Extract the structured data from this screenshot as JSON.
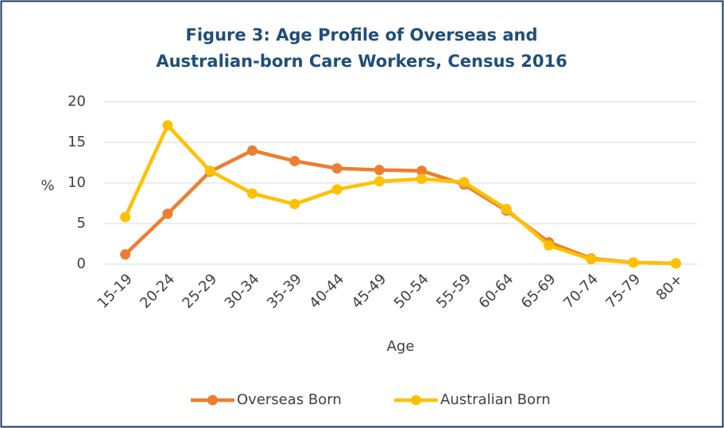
{
  "chart_data": {
    "type": "line",
    "title": "Figure 3: Age Profile of Overseas and Australian-born Care Workers, Census 2016",
    "x_label": "Age",
    "y_label": "%",
    "categories": [
      "15-19",
      "20-24",
      "25-29",
      "30-34",
      "35-39",
      "40-44",
      "45-49",
      "50-54",
      "55-59",
      "60-64",
      "65-69",
      "70-74",
      "75-79",
      "80+"
    ],
    "series": [
      {
        "name": "Overseas Born",
        "color": "#ed7d31",
        "values": [
          1.2,
          6.2,
          11.4,
          14.0,
          12.7,
          11.8,
          11.6,
          11.5,
          9.8,
          6.6,
          2.7,
          0.7,
          0.2,
          0.1
        ]
      },
      {
        "name": "Australian Born",
        "color": "#ffc000",
        "values": [
          5.8,
          17.1,
          11.5,
          8.7,
          7.4,
          9.2,
          10.2,
          10.5,
          10.1,
          6.8,
          2.3,
          0.6,
          0.2,
          0.1
        ]
      }
    ],
    "ylim": [
      0,
      20
    ],
    "yticks": [
      0,
      5,
      10,
      15,
      20
    ],
    "grid": true,
    "legend": "bottom"
  }
}
